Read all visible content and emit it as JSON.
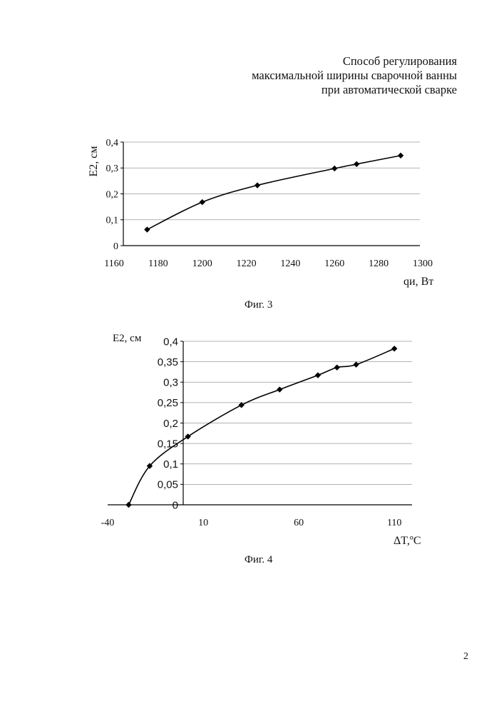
{
  "header": {
    "line1": "Способ регулирования",
    "line2": "максимальной ширины сварочной ванны",
    "line3": "при автоматической сварке"
  },
  "page_number": "2",
  "chart_data": [
    {
      "type": "line",
      "caption": "Фиг. 3",
      "ylabel": "E2, см",
      "xlabel": "qи, Вт",
      "xlim": [
        1160,
        1300
      ],
      "ylim": [
        0,
        0.4
      ],
      "x_ticks": [
        1160,
        1180,
        1200,
        1220,
        1240,
        1260,
        1280,
        1300
      ],
      "x_tick_labels": [
        "1160",
        "1180",
        "1200",
        "1220",
        "1240",
        "1260",
        "1280",
        "1300"
      ],
      "y_ticks": [
        0,
        0.1,
        0.2,
        0.3,
        0.4
      ],
      "y_tick_labels": [
        "0",
        "0,1",
        "0,2",
        "0,3",
        "0,4"
      ],
      "grid": "horizontal",
      "marker": "diamond",
      "series": [
        {
          "x": [
            1175,
            1200,
            1225,
            1260,
            1270,
            1290
          ],
          "y": [
            0.062,
            0.168,
            0.233,
            0.298,
            0.315,
            0.348
          ]
        }
      ]
    },
    {
      "type": "line",
      "caption": "Фиг. 4",
      "ylabel": "E2, см",
      "xlabel": "ΔT,ºC",
      "xlim": [
        -40,
        120
      ],
      "ylim": [
        0,
        0.4
      ],
      "x_ticks": [
        -40,
        10,
        60,
        110
      ],
      "x_tick_labels": [
        "-40",
        "10",
        "60",
        "110"
      ],
      "y_ticks": [
        0,
        0.05,
        0.1,
        0.15,
        0.2,
        0.25,
        0.3,
        0.35,
        0.4
      ],
      "y_tick_labels": [
        "0",
        "0,05",
        "0,1",
        "0,15",
        "0,2",
        "0,25",
        "0,3",
        "0,35",
        "0,4"
      ],
      "grid": "horizontal",
      "marker": "diamond",
      "series": [
        {
          "x": [
            -29,
            -18,
            2,
            30,
            50,
            70,
            80,
            90,
            110
          ],
          "y": [
            0.0,
            0.095,
            0.167,
            0.244,
            0.282,
            0.317,
            0.336,
            0.343,
            0.382
          ]
        }
      ]
    }
  ]
}
